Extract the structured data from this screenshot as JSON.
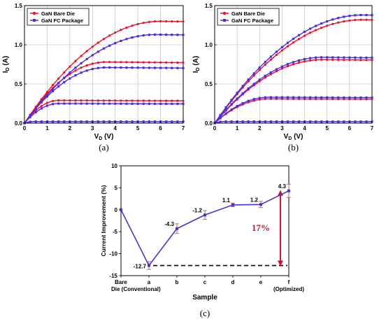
{
  "colors": {
    "bare": "#e8102a",
    "fc": "#4f2ed8",
    "line_c": "#4a33c8",
    "err": "#b07070",
    "arrow": "#d11232",
    "grid": "#b8b8b8"
  },
  "chart_data": [
    {
      "type": "line",
      "caption": "(a)",
      "xlabel": "V",
      "xlabel_sub": "D",
      "xlabel_unit": " (V)",
      "ylabel": "I",
      "ylabel_sub": "D",
      "ylabel_unit": " (A)",
      "xlim": [
        0,
        7
      ],
      "ylim": [
        0,
        1.5
      ],
      "x_ticks": [
        0,
        1,
        2,
        3,
        4,
        5,
        6,
        7
      ],
      "y_ticks": [
        0.0,
        0.5,
        1.0,
        1.5
      ],
      "y_tick_labels": [
        "0.0",
        "0.5",
        "1.0",
        "1.5"
      ],
      "grid": true,
      "legend": "top-left",
      "legend_entries": [
        "GaN Bare Die",
        "GaN FC Package"
      ],
      "series": [
        {
          "name": "GaN Bare Die",
          "group": "bare",
          "vsat": 6.0,
          "isat": 1.3
        },
        {
          "name": "GaN Bare Die",
          "group": "bare",
          "vsat": 3.6,
          "isat": 0.78
        },
        {
          "name": "GaN Bare Die",
          "group": "bare",
          "vsat": 1.5,
          "isat": 0.29
        },
        {
          "name": "GaN Bare Die",
          "group": "bare",
          "vsat": 0.4,
          "isat": 0.02
        },
        {
          "name": "GaN FC Package",
          "group": "fc",
          "vsat": 5.8,
          "isat": 1.13
        },
        {
          "name": "GaN FC Package",
          "group": "fc",
          "vsat": 3.6,
          "isat": 0.71
        },
        {
          "name": "GaN FC Package",
          "group": "fc",
          "vsat": 1.5,
          "isat": 0.25
        },
        {
          "name": "GaN FC Package",
          "group": "fc",
          "vsat": 0.4,
          "isat": 0.02
        }
      ]
    },
    {
      "type": "line",
      "caption": "(b)",
      "xlabel": "V",
      "xlabel_sub": "D",
      "xlabel_unit": " (V)",
      "ylabel": "I",
      "ylabel_sub": "D",
      "ylabel_unit": " (A)",
      "xlim": [
        0,
        7
      ],
      "ylim": [
        0,
        1.5
      ],
      "x_ticks": [
        0,
        1,
        2,
        3,
        4,
        5,
        6,
        7
      ],
      "y_ticks": [
        0.0,
        0.5,
        1.0,
        1.5
      ],
      "y_tick_labels": [
        "0.0",
        "0.5",
        "1.0",
        "1.5"
      ],
      "grid": true,
      "legend": "top-left",
      "legend_entries": [
        "GaN Bare Die",
        "GaN FC Package"
      ],
      "series": [
        {
          "name": "GaN Bare Die",
          "group": "bare",
          "vsat": 6.6,
          "isat": 1.32
        },
        {
          "name": "GaN Bare Die",
          "group": "bare",
          "vsat": 4.8,
          "isat": 0.81
        },
        {
          "name": "GaN Bare Die",
          "group": "bare",
          "vsat": 2.4,
          "isat": 0.31
        },
        {
          "name": "GaN Bare Die",
          "group": "bare",
          "vsat": 0.4,
          "isat": 0.02
        },
        {
          "name": "GaN FC Package",
          "group": "fc",
          "vsat": 6.6,
          "isat": 1.38
        },
        {
          "name": "GaN FC Package",
          "group": "fc",
          "vsat": 4.8,
          "isat": 0.84
        },
        {
          "name": "GaN FC Package",
          "group": "fc",
          "vsat": 2.4,
          "isat": 0.33
        },
        {
          "name": "GaN FC Package",
          "group": "fc",
          "vsat": 0.4,
          "isat": 0.02
        }
      ]
    },
    {
      "type": "line",
      "caption": "(c)",
      "xlabel": "Sample",
      "ylabel": "Current Improvement (%)",
      "ylim": [
        -15,
        10
      ],
      "y_ticks": [
        -15,
        -10,
        -5,
        0,
        5,
        10
      ],
      "categories": [
        "Bare",
        "a",
        "b",
        "c",
        "d",
        "e",
        "f"
      ],
      "category_sublabels": [
        "Die (Conventional)",
        "",
        "",
        "",
        "",
        "",
        "(Optimized)"
      ],
      "values": [
        0,
        -12.7,
        -4.3,
        -1.2,
        1.1,
        1.2,
        4.3
      ],
      "errors": [
        0,
        0.9,
        1.1,
        1.0,
        0.4,
        0.7,
        1.5
      ],
      "point_labels": [
        "",
        "-12.7",
        "-4.3",
        "-1.2",
        "1.1",
        "1.2",
        "4.3"
      ],
      "reference_line": -12.7,
      "annotation": "17%",
      "grid": false
    }
  ]
}
